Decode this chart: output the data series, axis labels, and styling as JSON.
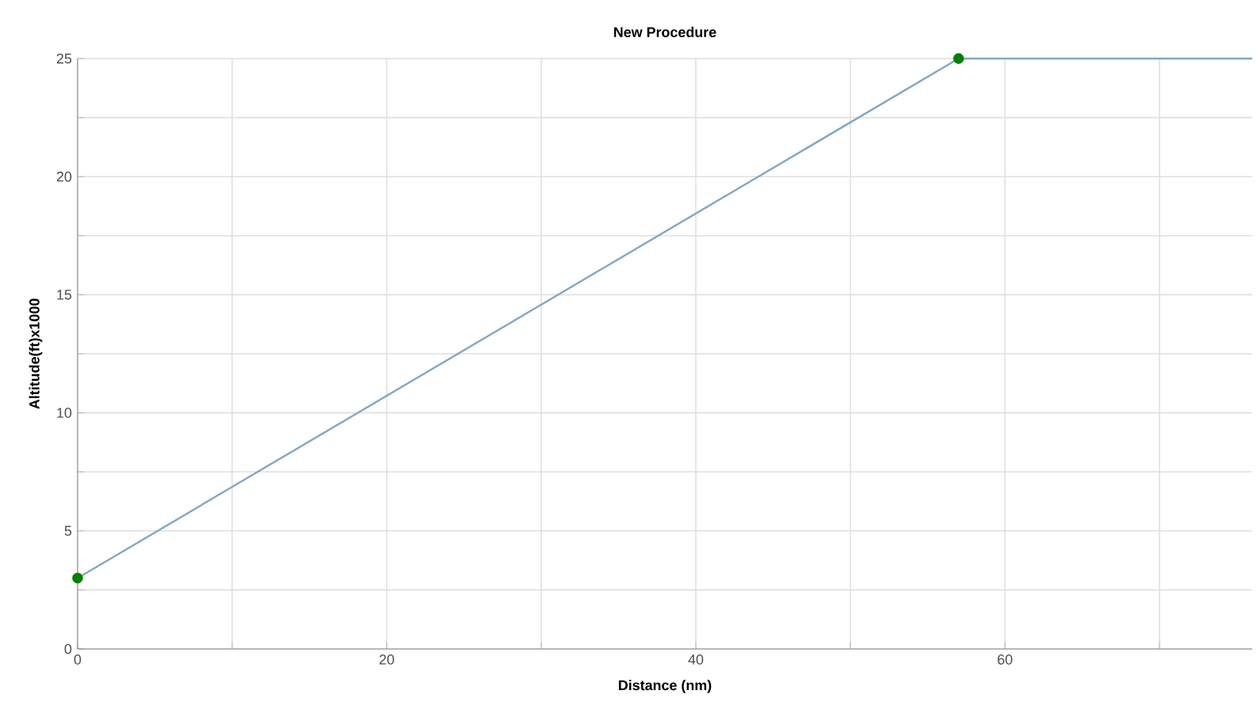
{
  "chart_data": {
    "type": "line",
    "title": "New Procedure",
    "xlabel": "Distance (nm)",
    "ylabel": "Altitude(ft)x1000",
    "series": [
      {
        "color": "#7fa7c7",
        "x": [
          0,
          57,
          76
        ],
        "values": [
          3,
          25,
          25
        ],
        "marker": "none"
      },
      {
        "type": "scatter",
        "color": "#008000",
        "x": [
          0,
          57
        ],
        "values": [
          3,
          25
        ],
        "marker": "circle"
      }
    ],
    "xlim": [
      0,
      76
    ],
    "ylim": [
      0,
      25
    ],
    "xticks": [
      0,
      {
        "value": 10,
        "label": null
      },
      20,
      {
        "value": 30,
        "label": null
      },
      40,
      {
        "value": 50,
        "label": null
      },
      60,
      {
        "value": 70,
        "label": null
      }
    ],
    "yticks": [
      0,
      {
        "value": 2.5,
        "label": null
      },
      5,
      {
        "value": 7.5,
        "label": null
      },
      10,
      {
        "value": 12.5,
        "label": null
      },
      15,
      {
        "value": 17.5,
        "label": null
      },
      20,
      {
        "value": 22.5,
        "label": null
      },
      25
    ],
    "grid": true
  }
}
